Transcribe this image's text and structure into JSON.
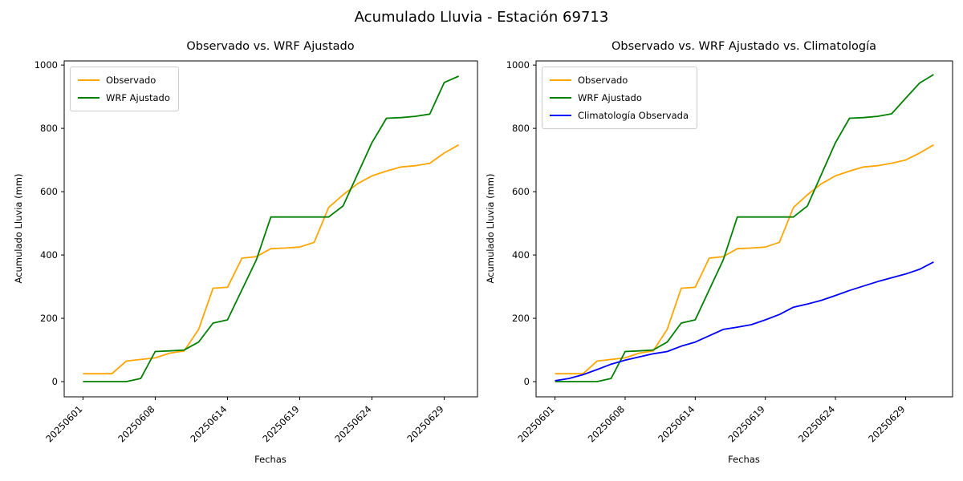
{
  "suptitle": "Acumulado Lluvia - Estación 69713",
  "chart_data": [
    {
      "type": "line",
      "title": "Observado vs. WRF Ajustado",
      "xlabel": "Fechas",
      "ylabel": "Acumulado Lluvia (mm)",
      "x_tick_indices": [
        0,
        5,
        10,
        15,
        20,
        25
      ],
      "x_tick_labels": [
        "20250601",
        "20250608",
        "20250614",
        "20250619",
        "20250624",
        "20250629"
      ],
      "y_ticks": [
        0,
        200,
        400,
        600,
        800,
        1000
      ],
      "ylim": [
        -48,
        1013
      ],
      "n_points": 27,
      "grid": false,
      "legend_position": "upper left",
      "series": [
        {
          "name": "Observado",
          "color": "#FFA500",
          "values": [
            25,
            25,
            25,
            65,
            70,
            75,
            90,
            97,
            165,
            295,
            298,
            390,
            395,
            420,
            422,
            425,
            440,
            550,
            590,
            625,
            650,
            665,
            678,
            682,
            690,
            722,
            748
          ]
        },
        {
          "name": "WRF Ajustado",
          "color": "#008000",
          "values": [
            0,
            0,
            0,
            0,
            10,
            95,
            97,
            100,
            125,
            185,
            195,
            290,
            385,
            520,
            520,
            520,
            520,
            520,
            555,
            655,
            755,
            832,
            834,
            838,
            845,
            945,
            965
          ]
        }
      ]
    },
    {
      "type": "line",
      "title": "Observado vs. WRF Ajustado vs. Climatología",
      "xlabel": "Fechas",
      "ylabel": "Acumulado Lluvia (mm)",
      "x_tick_indices": [
        0,
        5,
        10,
        15,
        20,
        25
      ],
      "x_tick_labels": [
        "20250601",
        "20250608",
        "20250614",
        "20250619",
        "20250624",
        "20250629"
      ],
      "y_ticks": [
        0,
        200,
        400,
        600,
        800,
        1000
      ],
      "ylim": [
        -48,
        1013
      ],
      "n_points": 28,
      "grid": false,
      "legend_position": "upper left",
      "series": [
        {
          "name": "Observado",
          "color": "#FFA500",
          "values": [
            25,
            25,
            25,
            65,
            70,
            75,
            90,
            97,
            165,
            295,
            298,
            390,
            395,
            420,
            422,
            425,
            440,
            550,
            590,
            625,
            650,
            665,
            678,
            682,
            690,
            700,
            722,
            748
          ]
        },
        {
          "name": "WRF Ajustado",
          "color": "#008000",
          "values": [
            0,
            0,
            0,
            0,
            10,
            95,
            97,
            100,
            125,
            185,
            195,
            290,
            385,
            520,
            520,
            520,
            520,
            520,
            555,
            655,
            755,
            832,
            834,
            838,
            846,
            895,
            943,
            970
          ]
        },
        {
          "name": "Climatología Observada",
          "color": "#0000FF",
          "values": [
            3,
            10,
            22,
            38,
            55,
            68,
            78,
            88,
            95,
            112,
            125,
            145,
            165,
            172,
            180,
            195,
            212,
            235,
            245,
            257,
            272,
            288,
            302,
            316,
            328,
            340,
            355,
            378
          ]
        }
      ]
    }
  ]
}
